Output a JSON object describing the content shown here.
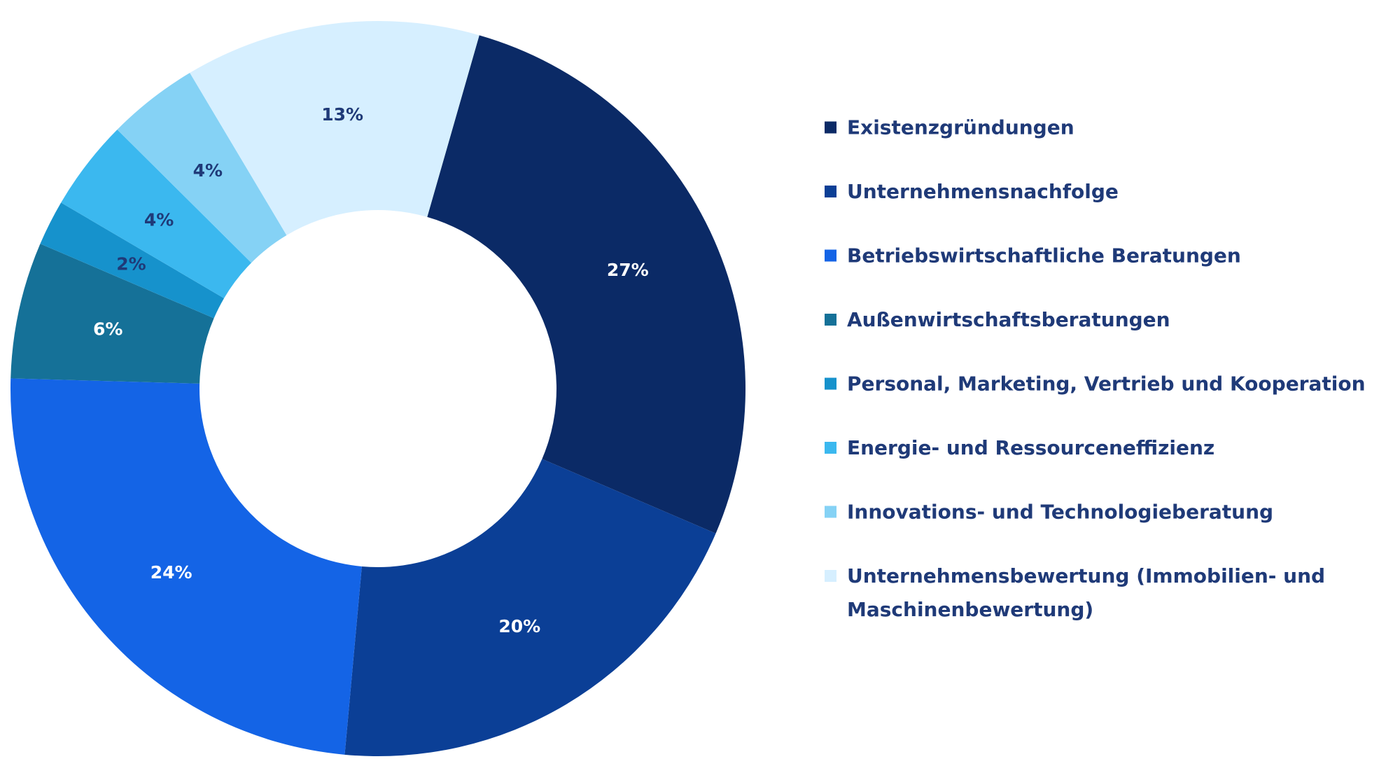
{
  "chart_data": {
    "type": "pie",
    "donut": true,
    "slices": [
      {
        "label": "Existenzgründungen",
        "value": 27,
        "data_label": "27%",
        "color": "#0b2a66",
        "label_color": "#ffffff"
      },
      {
        "label": "Unternehmensnachfolge",
        "value": 20,
        "data_label": "20%",
        "color": "#0b3f96",
        "label_color": "#ffffff"
      },
      {
        "label": "Betriebswirtschaftliche Beratungen",
        "value": 24,
        "data_label": "24%",
        "color": "#1464e6",
        "label_color": "#ffffff"
      },
      {
        "label": "Außenwirtschaftsberatungen",
        "value": 6,
        "data_label": "6%",
        "color": "#157198",
        "label_color": "#ffffff"
      },
      {
        "label": "Personal, Marketing, Vertrieb und Kooperation",
        "value": 2,
        "data_label": "2%",
        "color": "#1692cc",
        "label_color": "#1f3a78"
      },
      {
        "label": "Energie- und Ressourceneffizienz",
        "value": 4,
        "data_label": "4%",
        "color": "#3bb8ef",
        "label_color": "#1f3a78"
      },
      {
        "label": "Innovations- und Technologieberatung",
        "value": 4,
        "data_label": "4%",
        "color": "#85d2f5",
        "label_color": "#1f3a78"
      },
      {
        "label": "Unternehmensbewertung (Immobilien- und Maschinenbewertung)",
        "value": 13,
        "data_label": "13%",
        "color": "#d6efff",
        "label_color": "#1f3a78"
      }
    ],
    "legend_lines": [
      [
        "Existenzgründungen"
      ],
      [
        "Unternehmensnachfolge"
      ],
      [
        "Betriebswirtschaftliche Beratungen"
      ],
      [
        "Außenwirtschaftsberatungen"
      ],
      [
        "Personal, Marketing, Vertrieb und Kooperation"
      ],
      [
        "Energie- und Ressourceneffizienz"
      ],
      [
        "Innovations- und Technologieberatung"
      ],
      [
        "Unternehmensbewertung (Immobilien- und",
        "Maschinenbewertung)"
      ]
    ],
    "legend_position": "right",
    "start_angle_deg": 16,
    "direction": "clockwise"
  }
}
